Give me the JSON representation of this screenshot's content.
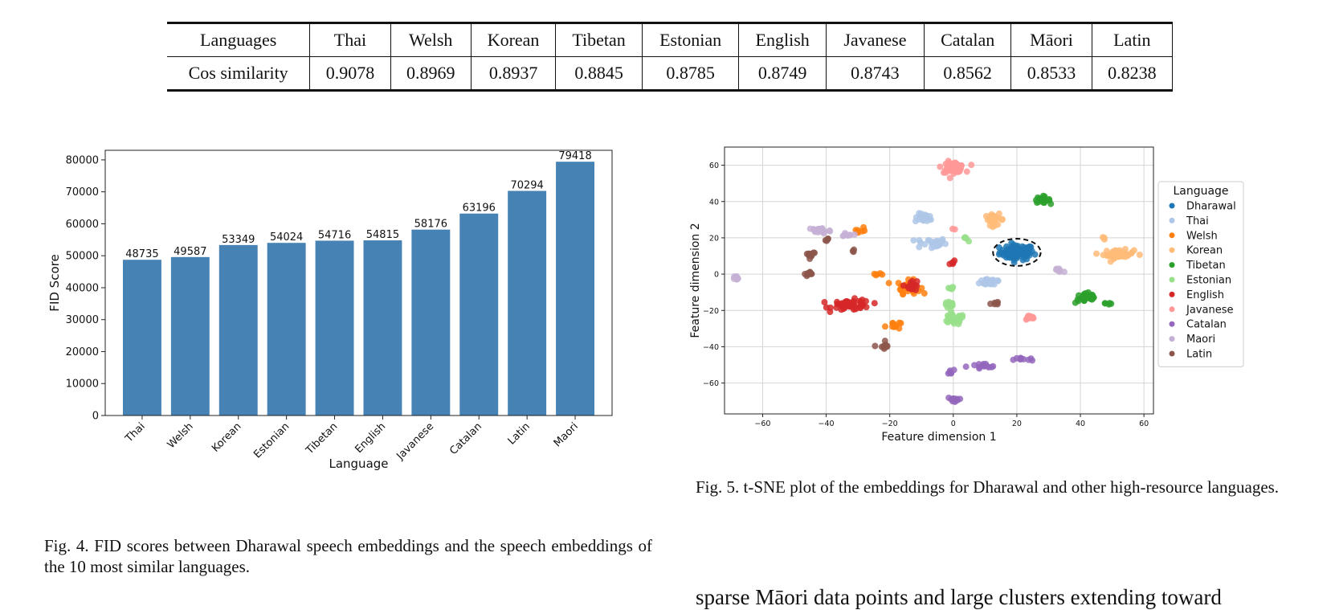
{
  "table": {
    "header": [
      "Languages",
      "Thai",
      "Welsh",
      "Korean",
      "Tibetan",
      "Estonian",
      "English",
      "Javanese",
      "Catalan",
      "Māori",
      "Latin"
    ],
    "row": [
      "Cos similarity",
      "0.9078",
      "0.8969",
      "0.8937",
      "0.8845",
      "0.8785",
      "0.8749",
      "0.8743",
      "0.8562",
      "0.8533",
      "0.8238"
    ]
  },
  "chart_data": [
    {
      "type": "bar",
      "categories": [
        "Thai",
        "Welsh",
        "Korean",
        "Estonian",
        "Tibetan",
        "English",
        "Javanese",
        "Catalan",
        "Latin",
        "Maori"
      ],
      "values": [
        48735,
        49587,
        53349,
        54024,
        54716,
        54815,
        58176,
        63196,
        70294,
        79418
      ],
      "xlabel": "Language",
      "ylabel": "FID Score",
      "ylim": [
        0,
        83000
      ],
      "yticks": [
        0,
        10000,
        20000,
        30000,
        40000,
        50000,
        60000,
        70000,
        80000
      ],
      "color": "#4682b4",
      "grid": false
    },
    {
      "type": "scatter",
      "xlabel": "Feature dimension 1",
      "ylabel": "Feature dimension 2",
      "xlim": [
        -72,
        63
      ],
      "ylim": [
        -77,
        70
      ],
      "xticks": [
        -60,
        -40,
        -20,
        0,
        20,
        40,
        60
      ],
      "yticks": [
        -60,
        -40,
        -20,
        0,
        20,
        40,
        60
      ],
      "grid": true,
      "legend": {
        "title": "Language",
        "placement": "right"
      },
      "highlight": {
        "label": "Dharawal",
        "cx": 20,
        "cy": 12,
        "rx": 7.5,
        "ry": 7.5
      },
      "series": [
        {
          "name": "Dharawal",
          "color": "#1f77b4",
          "clusters": [
            [
              20,
              12,
              4.5,
              3.5,
              90
            ]
          ]
        },
        {
          "name": "Thai",
          "color": "#aec7e8",
          "clusters": [
            [
              -9,
              31,
              2.5,
              2.0,
              20
            ],
            [
              -7,
              17,
              4.0,
              2.5,
              30
            ],
            [
              12,
              -4,
              3.0,
              2.0,
              25
            ]
          ]
        },
        {
          "name": "Welsh",
          "color": "#ff7f0e",
          "clusters": [
            [
              -30,
              24,
              2.0,
              2.0,
              8
            ],
            [
              -14,
              -7,
              3.0,
              3.0,
              35
            ],
            [
              -24,
              0,
              1.5,
              1.0,
              5
            ],
            [
              -19,
              -28,
              2.0,
              2.0,
              10
            ]
          ]
        },
        {
          "name": "Korean",
          "color": "#ffbb78",
          "clusters": [
            [
              52,
              11,
              4.0,
              2.0,
              50
            ],
            [
              13,
              30,
              2.5,
              2.5,
              25
            ],
            [
              47,
              20,
              1.0,
              1.0,
              3
            ]
          ]
        },
        {
          "name": "Tibetan",
          "color": "#2ca02c",
          "clusters": [
            [
              28,
              41,
              2.0,
              1.5,
              20
            ],
            [
              42,
              -13,
              3.0,
              2.5,
              35
            ],
            [
              49,
              -16,
              1.0,
              1.0,
              5
            ]
          ]
        },
        {
          "name": "Estonian",
          "color": "#98df8a",
          "clusters": [
            [
              0,
              -25,
              3.0,
              2.5,
              35
            ],
            [
              -1,
              -17,
              1.5,
              1.5,
              12
            ],
            [
              -1,
              -8,
              1.0,
              1.0,
              6
            ],
            [
              4,
              19,
              1.0,
              1.0,
              4
            ]
          ]
        },
        {
          "name": "English",
          "color": "#d62728",
          "clusters": [
            [
              -32,
              -17,
              5.0,
              2.5,
              55
            ],
            [
              -13,
              -6,
              2.0,
              2.5,
              15
            ],
            [
              0,
              6,
              1.0,
              1.0,
              5
            ]
          ]
        },
        {
          "name": "Javanese",
          "color": "#ff9896",
          "clusters": [
            [
              0,
              59,
              3.0,
              2.5,
              50
            ],
            [
              24,
              -24,
              1.5,
              1.0,
              12
            ],
            [
              0,
              25,
              0.5,
              0.5,
              2
            ]
          ]
        },
        {
          "name": "Catalan",
          "color": "#9467bd",
          "clusters": [
            [
              0,
              -69,
              1.5,
              1.0,
              12
            ],
            [
              -1,
              -54,
              1.0,
              1.0,
              8
            ],
            [
              9,
              -51,
              4.0,
              1.5,
              15
            ],
            [
              22,
              -47,
              2.5,
              1.0,
              10
            ]
          ]
        },
        {
          "name": "Maori",
          "color": "#c5b0d5",
          "clusters": [
            [
              -42,
              24,
              3.0,
              1.5,
              30
            ],
            [
              -68,
              -2,
              1.0,
              1.0,
              8
            ],
            [
              33,
              2,
              1.5,
              2.0,
              8
            ],
            [
              -33,
              22,
              2.0,
              1.0,
              8
            ]
          ]
        },
        {
          "name": "Latin",
          "color": "#8c564b",
          "clusters": [
            [
              -45,
              11,
              1.5,
              1.5,
              12
            ],
            [
              -45,
              0,
              1.5,
              1.0,
              10
            ],
            [
              -22,
              -40,
              1.5,
              3.0,
              10
            ],
            [
              13,
              -16,
              1.0,
              1.0,
              6
            ],
            [
              -40,
              19,
              1.0,
              1.0,
              4
            ],
            [
              -31,
              13,
              1.0,
              1.0,
              3
            ]
          ]
        }
      ]
    }
  ],
  "captions": {
    "fig4": "Fig. 4.   FID scores between Dharawal speech embeddings and the speech embeddings of the 10 most similar languages.",
    "fig5": "Fig. 5.   t-SNE plot of the embeddings for Dharawal and other high-resource languages."
  },
  "body_text": "sparse Māori data points and large clusters extending toward"
}
